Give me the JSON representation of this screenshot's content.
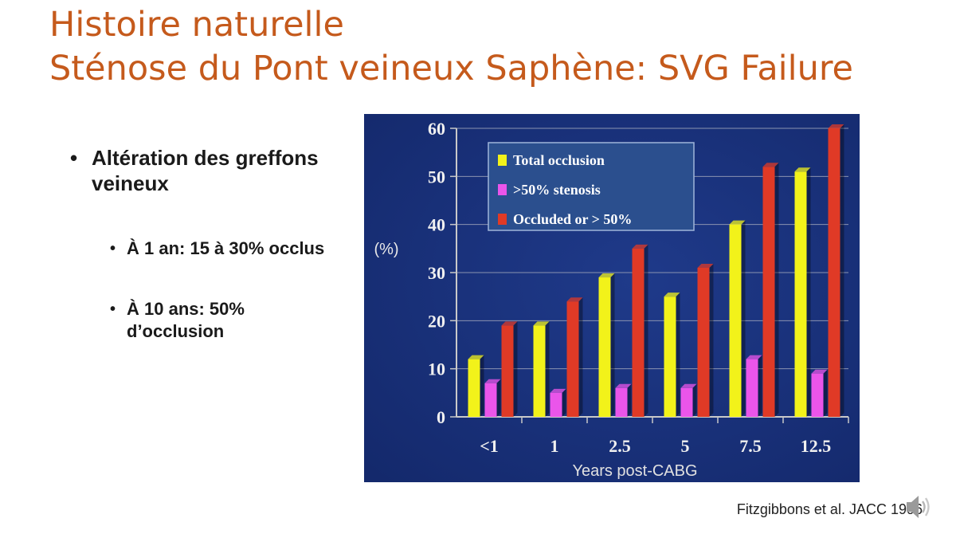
{
  "slide": {
    "title_line1": "Histoire naturelle",
    "title_line2": "Sténose du Pont veineux Saphène: SVG Failure",
    "bullets": {
      "main": "Altération des greffons veineux",
      "sub1": "À 1 an: 15 à 30% occlus",
      "sub2": "À 10 ans: 50% d’occlusion"
    },
    "citation": "Fitzgibbons et al. JACC 1996"
  },
  "chart_data": {
    "type": "bar",
    "categories": [
      "<1",
      "1",
      "2.5",
      "5",
      "7.5",
      "12.5"
    ],
    "series": [
      {
        "name": "Total occlusion",
        "values": [
          12,
          19,
          29,
          25,
          40,
          51
        ],
        "color": "#f2f21a"
      },
      {
        "name": ">50% stenosis",
        "values": [
          7,
          5,
          6,
          6,
          12,
          9
        ],
        "color": "#ea55ea"
      },
      {
        "name": "Occluded or > 50%",
        "values": [
          19,
          24,
          35,
          31,
          52,
          60
        ],
        "color": "#e03a26"
      }
    ],
    "title": "",
    "xlabel": "Years post-CABG",
    "ylabel": "(%)",
    "ylim": [
      0,
      60
    ],
    "yticks": [
      0,
      10,
      20,
      30,
      40,
      50,
      60
    ],
    "grid": true,
    "legend_position": "top-left",
    "background": "#14296c"
  }
}
